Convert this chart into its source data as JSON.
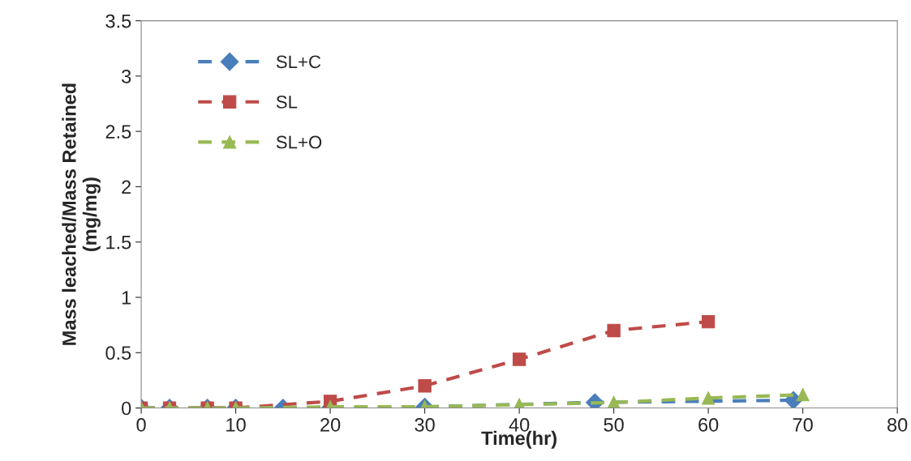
{
  "chart_data": {
    "type": "line",
    "xlabel": "Time(hr)",
    "ylabel": "Mass leached/Mass Retained\n(mg/mg)",
    "xlim": [
      0,
      80
    ],
    "xticks": [
      0,
      10,
      20,
      30,
      40,
      50,
      60,
      70,
      80
    ],
    "ylim": [
      0,
      3.5
    ],
    "yticks": [
      0,
      0.5,
      1,
      1.5,
      2,
      2.5,
      3,
      3.5
    ],
    "line_style": "dashed",
    "legend": "top left",
    "grid": false,
    "series": [
      {
        "name": "SL+C",
        "color": "#4a7ebb",
        "marker": "diamond",
        "x": [
          0,
          3,
          7,
          10,
          15,
          20,
          30,
          48,
          69
        ],
        "values": [
          0,
          0,
          0,
          0,
          0,
          0,
          0.01,
          0.05,
          0.07
        ]
      },
      {
        "name": "SL",
        "color": "#be4b48",
        "marker": "square",
        "x": [
          0,
          3,
          7,
          10,
          20,
          30,
          40,
          50,
          60
        ],
        "values": [
          0,
          0,
          0,
          0,
          0.06,
          0.2,
          0.44,
          0.7,
          0.78
        ]
      },
      {
        "name": "SL+O",
        "color": "#98b954",
        "marker": "triangle",
        "x": [
          0,
          3,
          7,
          10,
          20,
          30,
          40,
          50,
          60,
          70
        ],
        "values": [
          0,
          0,
          0,
          0,
          0.01,
          0.01,
          0.03,
          0.05,
          0.09,
          0.12
        ]
      }
    ]
  }
}
